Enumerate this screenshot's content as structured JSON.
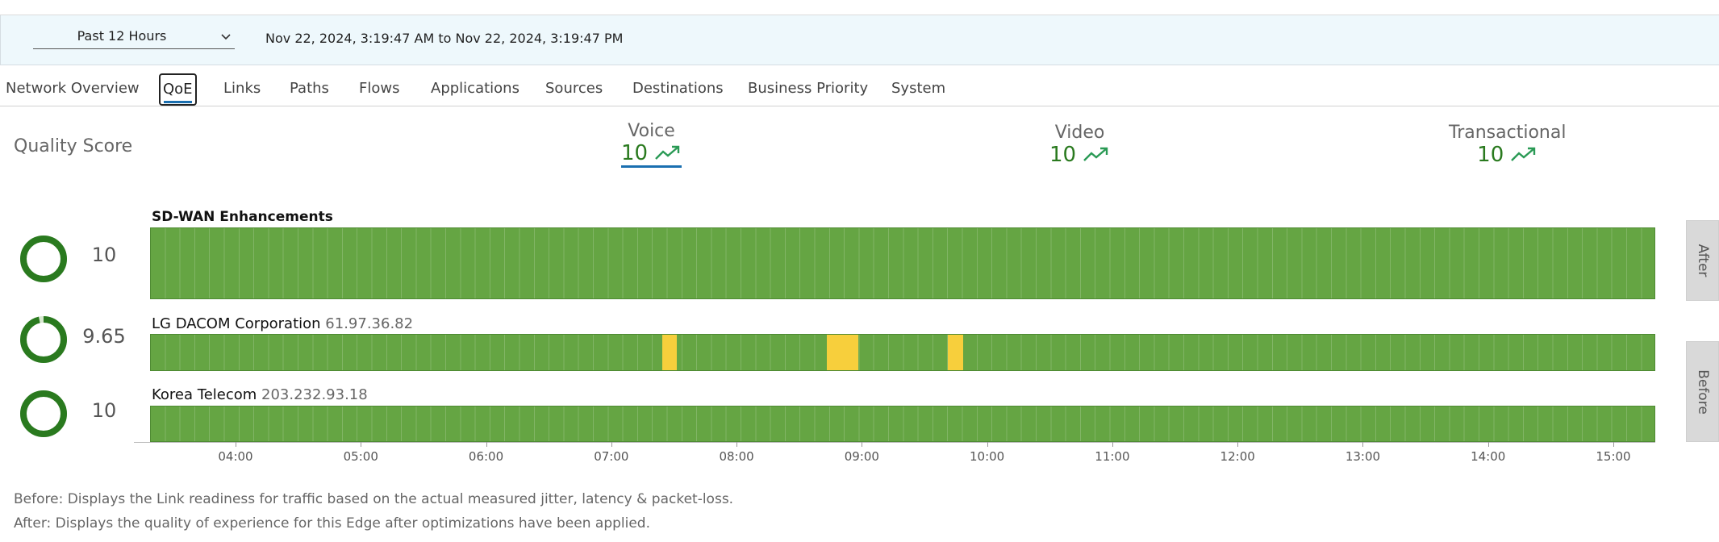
{
  "filter": {
    "time_range": "Past 12 Hours",
    "range_text": "Nov 22, 2024, 3:19:47 AM to Nov 22, 2024, 3:19:47 PM"
  },
  "tabs": [
    {
      "label": "Network Overview"
    },
    {
      "label": "QoE"
    },
    {
      "label": "Links"
    },
    {
      "label": "Paths"
    },
    {
      "label": "Flows"
    },
    {
      "label": "Applications"
    },
    {
      "label": "Sources"
    },
    {
      "label": "Destinations"
    },
    {
      "label": "Business Priority"
    },
    {
      "label": "System"
    }
  ],
  "active_tab": "QoE",
  "quality": {
    "title": "Quality Score",
    "metrics": [
      {
        "label": "Voice",
        "value": "10",
        "trend_icon": "trend-up-icon",
        "selected": true
      },
      {
        "label": "Video",
        "value": "10",
        "trend_icon": "trend-up-icon",
        "selected": false
      },
      {
        "label": "Transactional",
        "value": "10",
        "trend_icon": "trend-up-icon",
        "selected": false
      }
    ]
  },
  "rows": [
    {
      "name": "SD-WAN Enhancements",
      "ip": "",
      "score": "10",
      "score_fraction": 1.0,
      "degraded": []
    },
    {
      "name": "LG DACOM Corporation",
      "ip": "61.97.36.82",
      "score": "9.65",
      "score_fraction": 0.965,
      "degraded": [
        {
          "start": "07:24",
          "end": "07:31"
        },
        {
          "start": "08:43",
          "end": "08:58"
        },
        {
          "start": "09:41",
          "end": "09:48"
        }
      ]
    },
    {
      "name": "Korea Telecom",
      "ip": "203.232.93.18",
      "score": "10",
      "score_fraction": 1.0,
      "degraded": []
    }
  ],
  "axis": {
    "ticks": [
      "04:00",
      "05:00",
      "06:00",
      "07:00",
      "08:00",
      "09:00",
      "10:00",
      "11:00",
      "12:00",
      "13:00",
      "14:00",
      "15:00"
    ]
  },
  "side_tabs": {
    "after": "After",
    "before": "Before"
  },
  "notes": {
    "before": "Before: Displays the Link readiness for traffic based on the actual measured jitter, latency & packet-loss.",
    "after": "After: Displays the quality of experience for this Edge after optimizations have been applied."
  },
  "colors": {
    "good": "#65a543",
    "degraded": "#f7cf3c",
    "accent": "#1a6fb0",
    "score_text": "#2a7a1f"
  }
}
